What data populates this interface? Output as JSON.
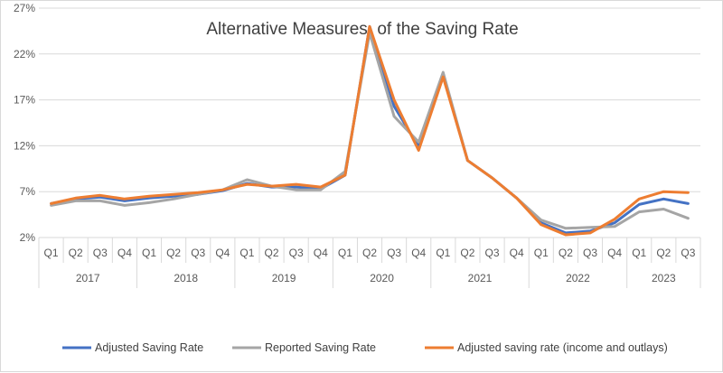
{
  "chart_data": {
    "type": "line",
    "title": "Alternative Measures  of the Saving Rate",
    "xlabel": "",
    "ylabel": "",
    "ylim": [
      2,
      27
    ],
    "yticks": [
      "2%",
      "7%",
      "12%",
      "17%",
      "22%",
      "27%"
    ],
    "ytick_values": [
      2,
      7,
      12,
      17,
      22,
      27
    ],
    "grid": "horizontal",
    "legend_position": "bottom",
    "categories": [
      "2017 Q1",
      "2017 Q2",
      "2017 Q3",
      "2017 Q4",
      "2018 Q1",
      "2018 Q2",
      "2018 Q3",
      "2018 Q4",
      "2019 Q1",
      "2019 Q2",
      "2019 Q3",
      "2019 Q4",
      "2020 Q1",
      "2020 Q2",
      "2020 Q3",
      "2020 Q4",
      "2021 Q1",
      "2021 Q2",
      "2021 Q3",
      "2021 Q4",
      "2022 Q1",
      "2022 Q2",
      "2022 Q3",
      "2022 Q4",
      "2023 Q1",
      "2023 Q2",
      "2023 Q3"
    ],
    "quarter_labels": [
      "Q1",
      "Q2",
      "Q3",
      "Q4",
      "Q1",
      "Q2",
      "Q3",
      "Q4",
      "Q1",
      "Q2",
      "Q3",
      "Q4",
      "Q1",
      "Q2",
      "Q3",
      "Q4",
      "Q1",
      "Q2",
      "Q3",
      "Q4",
      "Q1",
      "Q2",
      "Q3",
      "Q4",
      "Q1",
      "Q2",
      "Q3"
    ],
    "year_labels": [
      "2017",
      "2018",
      "2019",
      "2020",
      "2021",
      "2022",
      "2023"
    ],
    "series": [
      {
        "name": "Adjusted Saving Rate",
        "color": "#4472c4",
        "values": [
          5.7,
          6.2,
          6.4,
          6.0,
          6.3,
          6.5,
          6.7,
          7.1,
          7.9,
          7.5,
          7.5,
          7.3,
          8.8,
          25.0,
          16.3,
          11.9,
          19.7,
          10.4,
          8.5,
          6.3,
          3.6,
          2.5,
          2.7,
          3.6,
          5.6,
          6.2,
          5.7
        ]
      },
      {
        "name": "Reported Saving Rate",
        "color": "#a5a5a5",
        "values": [
          5.5,
          6.0,
          6.0,
          5.5,
          5.8,
          6.2,
          6.7,
          7.2,
          8.3,
          7.6,
          7.2,
          7.2,
          9.2,
          24.3,
          15.2,
          12.4,
          20.0,
          10.4,
          8.5,
          6.3,
          3.9,
          3.0,
          3.1,
          3.2,
          4.8,
          5.1,
          4.1
        ]
      },
      {
        "name": "Adjusted saving rate (income and outlays)",
        "color": "#ed7d31",
        "values": [
          5.7,
          6.3,
          6.6,
          6.2,
          6.5,
          6.7,
          6.9,
          7.2,
          7.8,
          7.6,
          7.8,
          7.5,
          8.8,
          25.0,
          17.0,
          11.5,
          19.5,
          10.4,
          8.5,
          6.3,
          3.4,
          2.3,
          2.5,
          4.0,
          6.2,
          7.0,
          6.9
        ]
      }
    ]
  }
}
